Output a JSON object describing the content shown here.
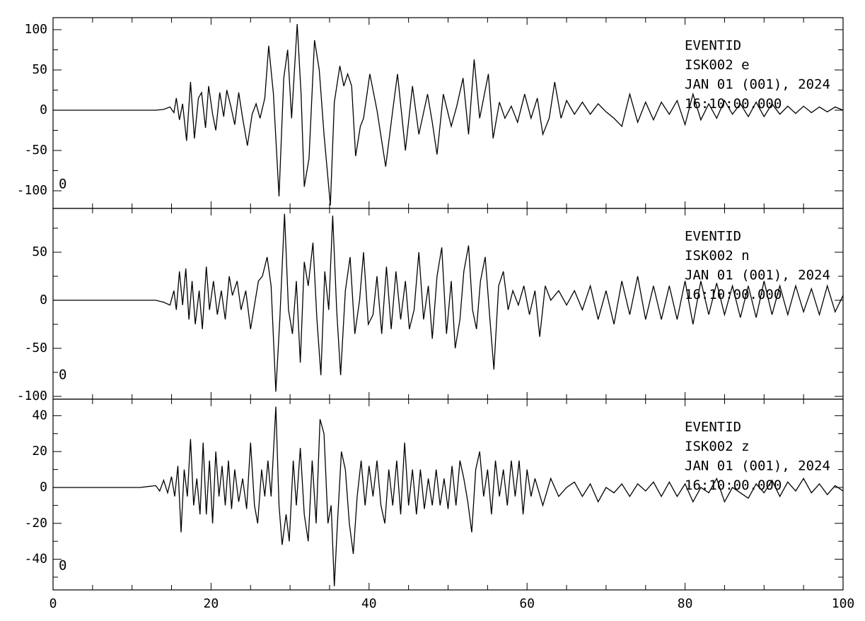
{
  "chart_data": [
    {
      "type": "line",
      "color": "#000000",
      "xlim": [
        0,
        100
      ],
      "ylim": [
        -121.9,
        114.9
      ],
      "yticks": [
        100,
        50,
        0,
        -50,
        -100
      ],
      "yminorticks": [
        75,
        25,
        -25,
        -75
      ],
      "annotations": [
        "EVENTID",
        "ISK002   e",
        "JAN 01 (001), 2024",
        "16:10:00.000"
      ],
      "marker_label": "0",
      "x": [
        0,
        13,
        14,
        14.8,
        15.3,
        15.6,
        16,
        16.4,
        16.9,
        17.4,
        17.9,
        18.4,
        18.8,
        19.3,
        19.7,
        20.2,
        20.6,
        21.1,
        21.6,
        22,
        22.5,
        23,
        23.5,
        24,
        24.6,
        25.2,
        25.7,
        26.2,
        26.8,
        27.3,
        27.9,
        28.6,
        29.2,
        29.7,
        30.2,
        30.9,
        31.4,
        31.8,
        32.4,
        33.1,
        33.7,
        34.3,
        35.1,
        35.6,
        36.3,
        36.8,
        37.3,
        37.8,
        38.3,
        38.9,
        39.3,
        40.1,
        41,
        42.1,
        43,
        43.6,
        44.6,
        45.5,
        46.3,
        47.4,
        48,
        48.6,
        49.4,
        50.4,
        51.1,
        51.9,
        52.6,
        53.3,
        54,
        55.1,
        55.7,
        56.5,
        57.2,
        58,
        58.8,
        59.7,
        60.5,
        61.3,
        62,
        62.8,
        63.5,
        64.3,
        65,
        66,
        67,
        68,
        69,
        70,
        71,
        72,
        73,
        74,
        75,
        76,
        77,
        78,
        79,
        80,
        81,
        82,
        83,
        84,
        85,
        86,
        87,
        88,
        89,
        90,
        91,
        92,
        93,
        94,
        95,
        96,
        97,
        98,
        99,
        100
      ],
      "values": [
        0,
        0,
        1,
        4,
        -3,
        15,
        -12,
        8,
        -38,
        35,
        -35,
        15,
        22,
        -22,
        30,
        -5,
        -25,
        22,
        -8,
        25,
        5,
        -18,
        22,
        -10,
        -44,
        -5,
        8,
        -10,
        15,
        80,
        20,
        -107,
        40,
        75,
        -10,
        107,
        20,
        -95,
        -60,
        87,
        50,
        -30,
        -118,
        10,
        55,
        30,
        45,
        30,
        -57,
        -20,
        -10,
        45,
        0,
        -70,
        0,
        45,
        -50,
        30,
        -30,
        20,
        -15,
        -55,
        20,
        -20,
        5,
        40,
        -30,
        63,
        -10,
        45,
        -35,
        10,
        -10,
        5,
        -15,
        20,
        -10,
        15,
        -30,
        -10,
        35,
        -10,
        12,
        -5,
        10,
        -5,
        8,
        -2,
        -10,
        -20,
        20,
        -15,
        10,
        -12,
        10,
        -5,
        12,
        -18,
        20,
        -12,
        8,
        -10,
        12,
        -5,
        8,
        -8,
        10,
        -8,
        8,
        -5,
        5,
        -4,
        5,
        -3,
        4,
        -2,
        4,
        0
      ]
    },
    {
      "type": "line",
      "color": "#000000",
      "xlim": [
        0,
        100
      ],
      "ylim": [
        -102.9,
        95.6
      ],
      "yticks": [
        50,
        0,
        -50,
        -100
      ],
      "yminorticks": [
        75,
        25,
        -25,
        -75
      ],
      "annotations": [
        "EVENTID",
        "ISK002   n",
        "JAN 01 (001), 2024",
        "16:10:00.000"
      ],
      "marker_label": "0",
      "x": [
        0,
        13,
        14,
        14.8,
        15.3,
        15.6,
        16,
        16.4,
        16.8,
        17.2,
        17.6,
        18,
        18.5,
        18.9,
        19.4,
        19.8,
        20.3,
        20.8,
        21.3,
        21.8,
        22.3,
        22.7,
        23.3,
        23.8,
        24.4,
        25,
        25.5,
        26,
        26.5,
        27.1,
        27.6,
        28.2,
        28.7,
        29.3,
        29.8,
        30.3,
        30.8,
        31.3,
        31.8,
        32.3,
        32.9,
        33.4,
        33.9,
        34.4,
        34.9,
        35.4,
        35.9,
        36.4,
        37,
        37.6,
        38.2,
        38.8,
        39.3,
        39.9,
        40.5,
        41,
        41.6,
        42.2,
        42.8,
        43.4,
        44,
        44.6,
        45.1,
        45.7,
        46.3,
        46.9,
        47.5,
        48,
        48.6,
        49.2,
        49.8,
        50.4,
        50.9,
        51.5,
        52,
        52.6,
        53.1,
        53.6,
        54.1,
        54.7,
        55.3,
        55.8,
        56.4,
        57,
        57.6,
        58.2,
        58.9,
        59.6,
        60.3,
        61,
        61.6,
        62.3,
        63,
        64,
        65,
        66,
        67,
        68,
        69,
        70,
        71,
        72,
        73,
        74,
        75,
        76,
        77,
        78,
        79,
        80,
        81,
        82,
        83,
        84,
        85,
        86,
        87,
        88,
        89,
        90,
        91,
        92,
        93,
        94,
        95,
        96,
        97,
        98,
        99,
        100
      ],
      "values": [
        0,
        0,
        -2,
        -5,
        10,
        -10,
        30,
        -5,
        33,
        -20,
        20,
        -25,
        10,
        -30,
        35,
        -10,
        20,
        -15,
        10,
        -20,
        25,
        5,
        20,
        -10,
        10,
        -30,
        -5,
        20,
        25,
        45,
        15,
        -95,
        -20,
        90,
        -10,
        -35,
        20,
        -65,
        40,
        15,
        60,
        -20,
        -78,
        30,
        -10,
        88,
        -10,
        -78,
        10,
        45,
        -35,
        0,
        50,
        -25,
        -15,
        25,
        -35,
        35,
        -30,
        30,
        -20,
        20,
        -30,
        -10,
        50,
        -20,
        15,
        -40,
        25,
        55,
        -35,
        20,
        -50,
        -20,
        30,
        57,
        -10,
        -30,
        20,
        45,
        -20,
        -72,
        15,
        30,
        -10,
        10,
        -5,
        15,
        -15,
        10,
        -38,
        15,
        0,
        10,
        -5,
        10,
        -10,
        15,
        -20,
        10,
        -25,
        20,
        -15,
        25,
        -20,
        15,
        -20,
        15,
        -20,
        20,
        -25,
        20,
        -15,
        18,
        -15,
        15,
        -18,
        15,
        -18,
        20,
        -15,
        15,
        -15,
        15,
        -12,
        12,
        -15,
        15,
        -12,
        5
      ]
    },
    {
      "type": "line",
      "color": "#000000",
      "xlim": [
        0,
        100
      ],
      "ylim": [
        -57.1,
        49.2
      ],
      "yticks": [
        40,
        20,
        0,
        -20,
        -40
      ],
      "yminorticks": [
        30,
        10,
        -10,
        -30,
        -50
      ],
      "xticks": [
        0,
        20,
        40,
        60,
        80,
        100
      ],
      "xminorticks": [
        5,
        10,
        15,
        25,
        30,
        35,
        45,
        50,
        55,
        65,
        70,
        75,
        85,
        90,
        95
      ],
      "annotations": [
        "EVENTID",
        "ISK002   z",
        "JAN 01 (001), 2024",
        "16:10:00.000"
      ],
      "marker_label": "0",
      "x": [
        0,
        11,
        12,
        13,
        13.5,
        14,
        14.5,
        15,
        15.4,
        15.8,
        16.2,
        16.6,
        17,
        17.4,
        17.8,
        18.2,
        18.6,
        19,
        19.4,
        19.8,
        20.2,
        20.6,
        21,
        21.4,
        21.8,
        22.2,
        22.6,
        23,
        23.5,
        24,
        24.5,
        25,
        25.5,
        25.9,
        26.4,
        26.8,
        27.2,
        27.6,
        28.2,
        28.6,
        29,
        29.5,
        29.9,
        30.4,
        30.8,
        31.3,
        31.8,
        32.3,
        32.8,
        33.3,
        33.8,
        34.3,
        34.8,
        35.2,
        35.6,
        36,
        36.5,
        37,
        37.5,
        38,
        38.5,
        39,
        39.5,
        40,
        40.5,
        41,
        41.5,
        42,
        42.5,
        43,
        43.5,
        44,
        44.5,
        45,
        45.5,
        46,
        46.5,
        47,
        47.5,
        48,
        48.5,
        49,
        49.5,
        50,
        50.5,
        51,
        51.5,
        52,
        52.5,
        53,
        53.5,
        54,
        54.5,
        55,
        55.5,
        56,
        56.5,
        57,
        57.5,
        58,
        58.5,
        59,
        59.5,
        60,
        60.5,
        61,
        62,
        63,
        64,
        65,
        66,
        67,
        68,
        69,
        70,
        71,
        72,
        73,
        74,
        75,
        76,
        77,
        78,
        79,
        80,
        81,
        82,
        83,
        84,
        85,
        86,
        87,
        88,
        89,
        90,
        91,
        92,
        93,
        94,
        95,
        96,
        97,
        98,
        99,
        100
      ],
      "values": [
        0,
        0,
        0.5,
        1,
        -2,
        4,
        -3,
        6,
        -5,
        12,
        -25,
        10,
        -5,
        27,
        -10,
        5,
        -15,
        25,
        -15,
        15,
        -20,
        20,
        -5,
        12,
        -10,
        15,
        -12,
        10,
        -8,
        5,
        -12,
        25,
        -10,
        -20,
        10,
        -5,
        15,
        -5,
        45,
        -10,
        -32,
        -15,
        -30,
        15,
        -10,
        22,
        -15,
        -30,
        15,
        -20,
        38,
        30,
        -20,
        -10,
        -55,
        -20,
        20,
        10,
        -20,
        -37,
        -5,
        15,
        -10,
        12,
        -5,
        15,
        -10,
        -20,
        10,
        -10,
        15,
        -15,
        25,
        -10,
        10,
        -15,
        10,
        -12,
        5,
        -10,
        10,
        -10,
        5,
        -12,
        12,
        -10,
        15,
        5,
        -8,
        -25,
        10,
        20,
        -5,
        10,
        -15,
        15,
        -5,
        10,
        -10,
        15,
        -5,
        15,
        -15,
        10,
        -5,
        5,
        -10,
        5,
        -5,
        0,
        3,
        -5,
        2,
        -8,
        0,
        -3,
        2,
        -5,
        2,
        -2,
        3,
        -5,
        3,
        -5,
        2,
        -8,
        0,
        -3,
        5,
        -8,
        0,
        -3,
        -6,
        2,
        -3,
        4,
        -5,
        3,
        -2,
        5,
        -3,
        2,
        -4,
        1,
        -2
      ]
    }
  ]
}
